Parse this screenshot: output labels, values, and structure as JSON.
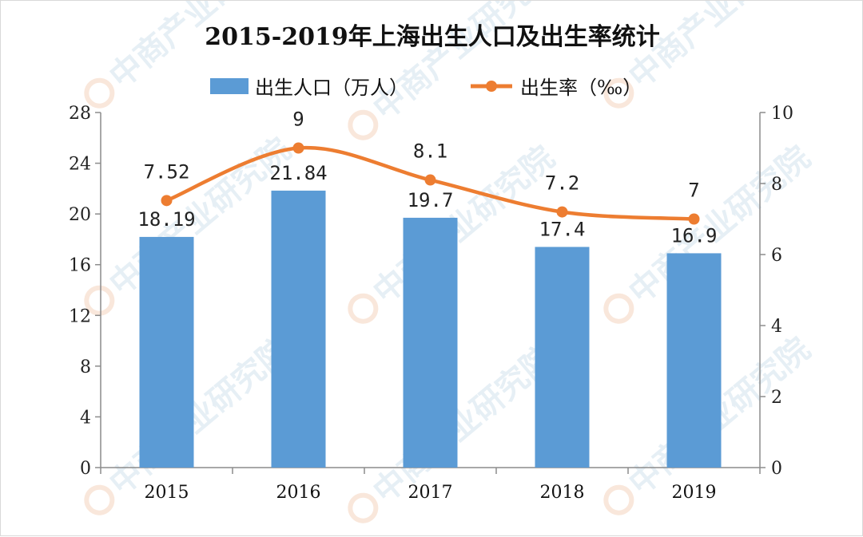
{
  "chart_data": {
    "type": "bar+line",
    "title": "2015-2019年上海出生人口及出生率统计",
    "categories": [
      "2015",
      "2016",
      "2017",
      "2018",
      "2019"
    ],
    "series": [
      {
        "name": "出生人口（万人）",
        "kind": "bar",
        "axis": "left",
        "color": "#5b9bd5",
        "values": [
          18.19,
          21.84,
          19.7,
          17.4,
          16.9
        ],
        "labels": [
          "18.19",
          "21.84",
          "19.7",
          "17.4",
          "16.9"
        ]
      },
      {
        "name": "出生率（‰）",
        "kind": "line",
        "axis": "right",
        "color": "#ed7d31",
        "values": [
          7.52,
          9,
          8.1,
          7.2,
          7
        ],
        "labels": [
          "7.52",
          "9",
          "8.1",
          "7.2",
          "7"
        ]
      }
    ],
    "y_left": {
      "ylim": [
        0,
        28
      ],
      "ticks": [
        "0",
        "4",
        "8",
        "12",
        "16",
        "20",
        "24",
        "28"
      ]
    },
    "y_right": {
      "ylim": [
        0,
        10
      ],
      "ticks": [
        "0",
        "2",
        "4",
        "6",
        "8",
        "10"
      ]
    },
    "grid": false,
    "legend_position": "top"
  },
  "watermark": {
    "text": "中商产业研究院",
    "icon": "zhongshang-logo-icon"
  }
}
